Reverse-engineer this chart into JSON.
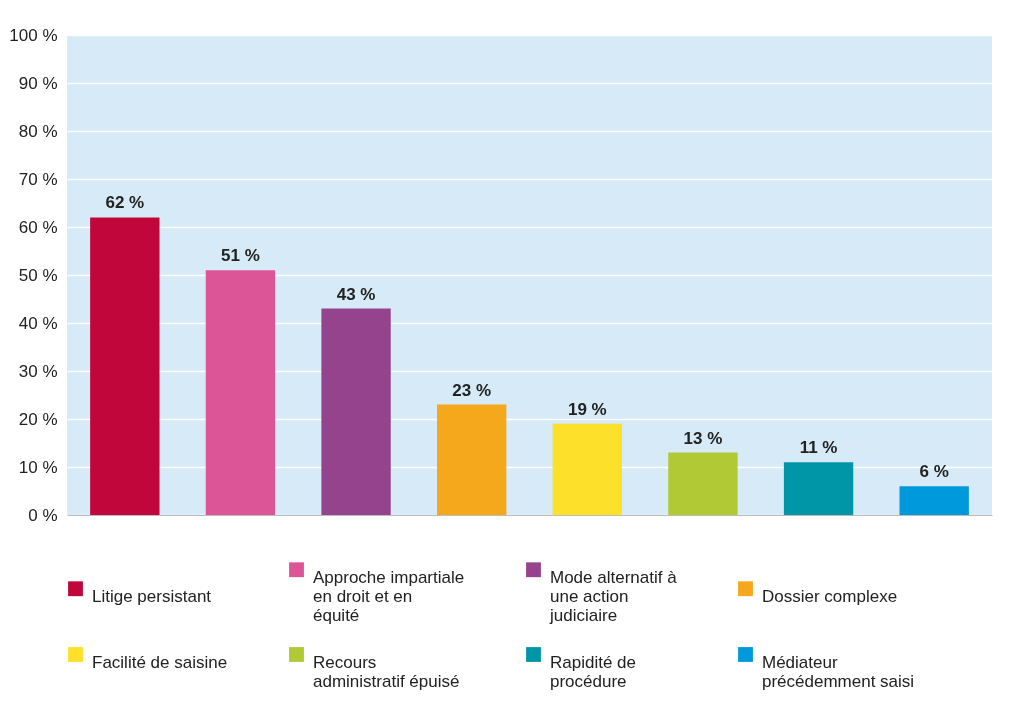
{
  "chart_data": {
    "type": "bar",
    "categories": [
      null,
      null,
      null,
      null,
      null,
      null,
      null,
      null
    ],
    "series": [
      {
        "name": "Litige persistant",
        "color": "#c0063a",
        "values": [
          62,
          null,
          null,
          null,
          null,
          null,
          null,
          null
        ],
        "value_labels": [
          "62 %",
          null,
          null,
          null,
          null,
          null,
          null,
          null
        ]
      },
      {
        "name": "Approche impartiale en droit et en équité",
        "color": "#dc5596",
        "values": [
          null,
          51,
          null,
          null,
          null,
          null,
          null,
          null
        ],
        "value_labels": [
          null,
          "51 %",
          null,
          null,
          null,
          null,
          null,
          null
        ]
      },
      {
        "name": "Mode alternatif à une action judiciaire",
        "color": "#96438e",
        "values": [
          null,
          null,
          43,
          null,
          null,
          null,
          null,
          null
        ],
        "value_labels": [
          null,
          null,
          "43 %",
          null,
          null,
          null,
          null,
          null
        ]
      },
      {
        "name": "Dossier complexe",
        "color": "#f5a81c",
        "values": [
          null,
          null,
          null,
          23,
          null,
          null,
          null,
          null
        ],
        "value_labels": [
          null,
          null,
          null,
          "23 %",
          null,
          null,
          null,
          null
        ]
      },
      {
        "name": "Facilité de saisine",
        "color": "#fde02a",
        "values": [
          null,
          null,
          null,
          null,
          19,
          null,
          null,
          null
        ],
        "value_labels": [
          null,
          null,
          null,
          null,
          "19 %",
          null,
          null,
          null
        ]
      },
      {
        "name": "Recours administratif épuisé",
        "color": "#b2c936",
        "values": [
          null,
          null,
          null,
          null,
          null,
          13,
          null,
          null
        ],
        "value_labels": [
          null,
          null,
          null,
          null,
          null,
          "13 %",
          null,
          null
        ]
      },
      {
        "name": "Rapidité de procédure",
        "color": "#0096a8",
        "values": [
          null,
          null,
          null,
          null,
          null,
          null,
          11,
          null
        ],
        "value_labels": [
          null,
          null,
          null,
          null,
          null,
          null,
          "11 %",
          null
        ]
      },
      {
        "name": "Médiateur précédemment saisi",
        "color": "#0099dc",
        "values": [
          null,
          null,
          null,
          null,
          null,
          null,
          null,
          6
        ],
        "value_labels": [
          null,
          null,
          null,
          null,
          null,
          null,
          null,
          "6 %"
        ]
      }
    ],
    "ylim": [
      0,
      100
    ],
    "yticks": [
      {
        "value": 0,
        "label": "0 %"
      },
      {
        "value": 10,
        "label": "10 %"
      },
      {
        "value": 20,
        "label": "20 %"
      },
      {
        "value": 30,
        "label": "30 %"
      },
      {
        "value": 40,
        "label": "40 %"
      },
      {
        "value": 50,
        "label": "50 %"
      },
      {
        "value": 60,
        "label": "60 %"
      },
      {
        "value": 70,
        "label": "70 %"
      },
      {
        "value": 80,
        "label": "80 %"
      },
      {
        "value": 90,
        "label": "90 %"
      },
      {
        "value": 100,
        "label": "100 %"
      }
    ],
    "grid": "y",
    "legend": "bottom",
    "tick_labels": "y"
  }
}
